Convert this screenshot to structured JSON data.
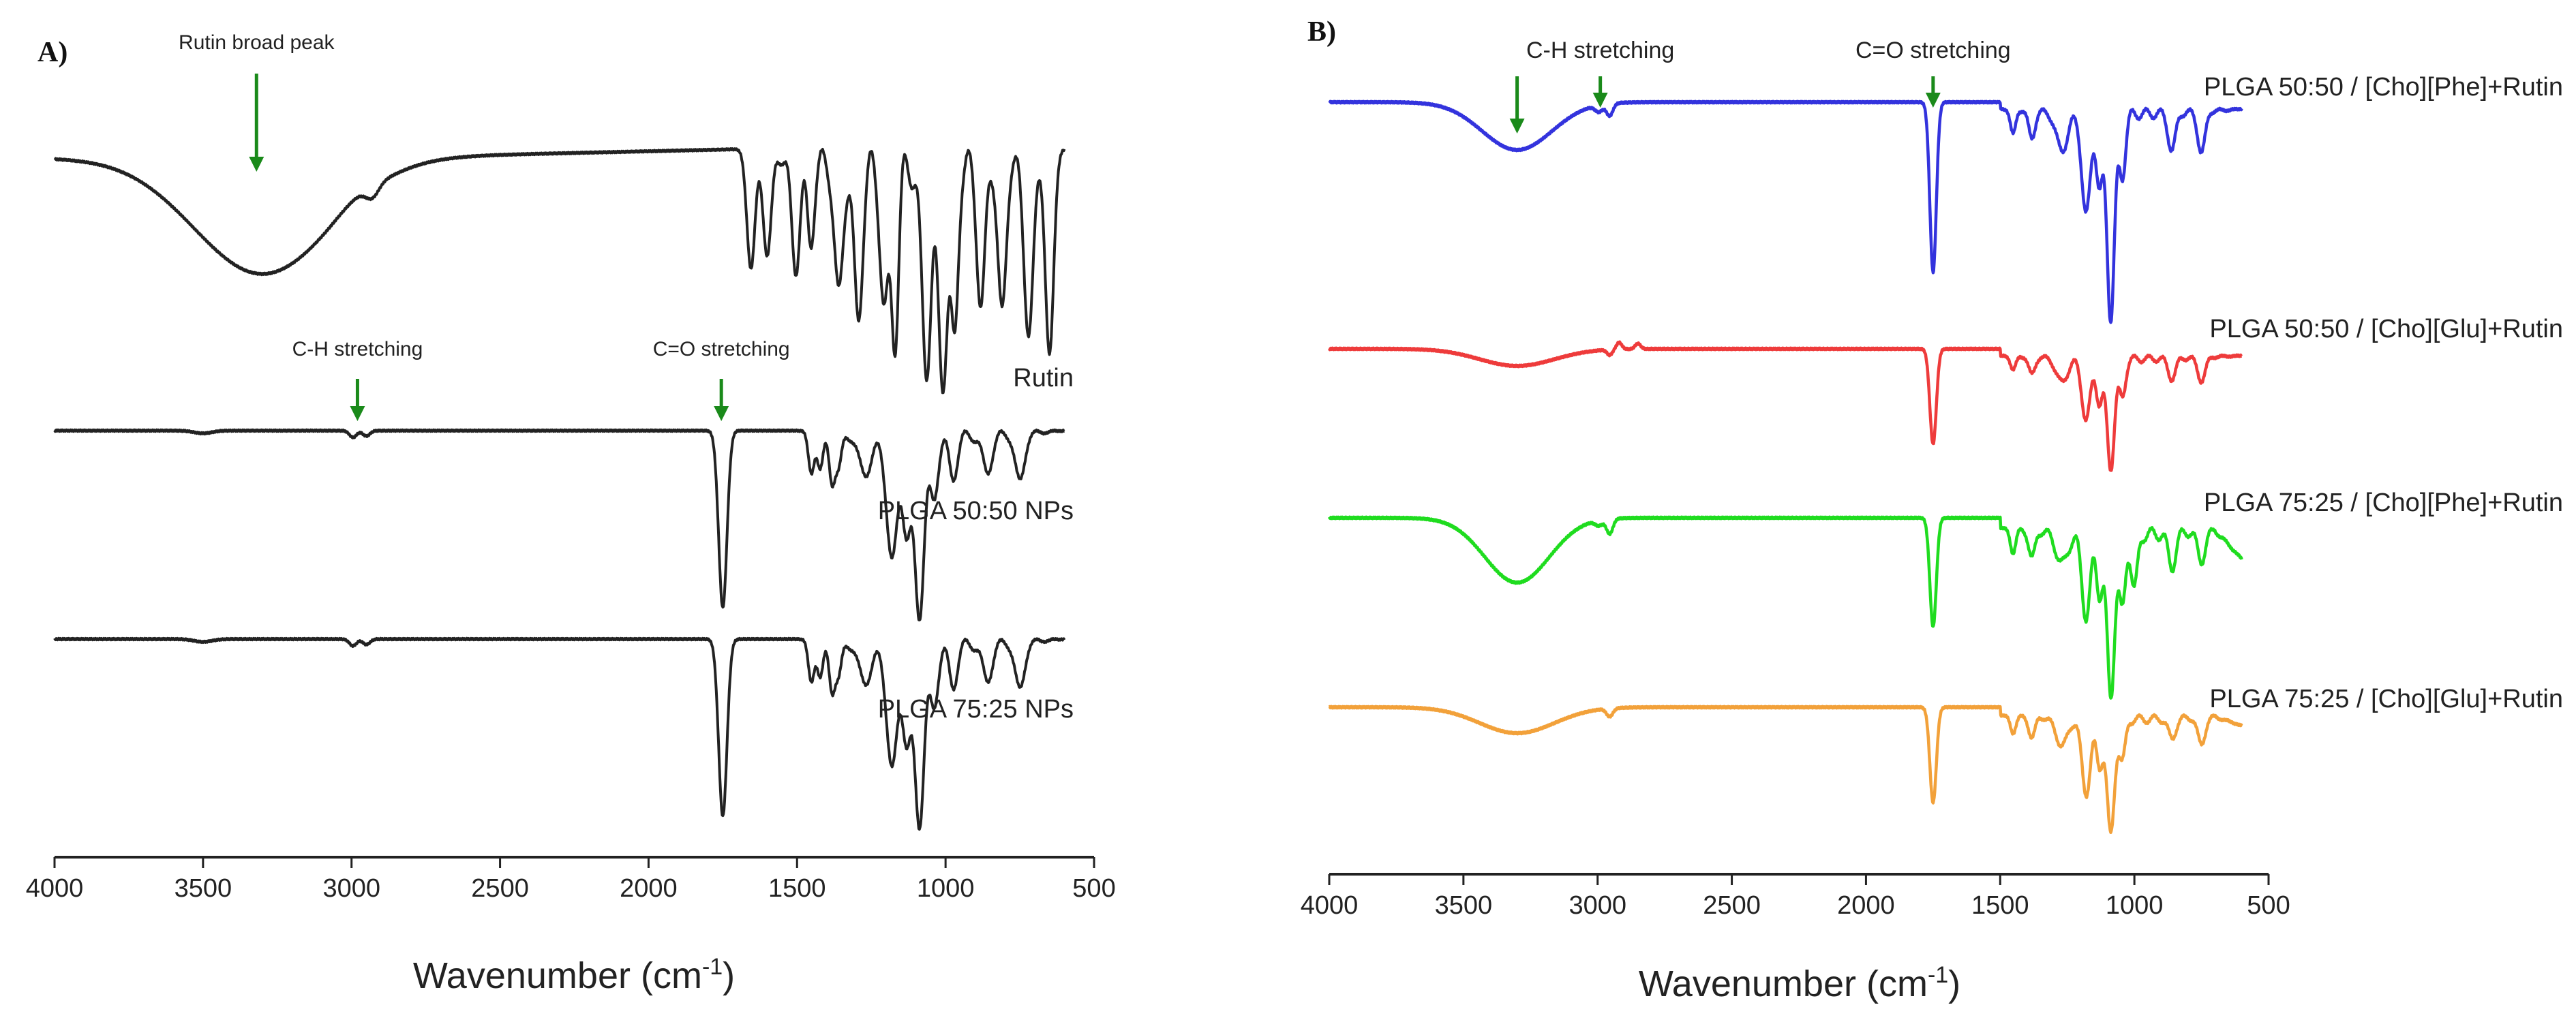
{
  "chart_data": [
    {
      "panel": "A)",
      "type": "line",
      "title": "",
      "xlabel": "Wavenumber (cm",
      "xlabel_sup": "-1",
      "xlabel_end": ")",
      "ylabel": "",
      "xlim": [
        4000,
        500
      ],
      "xticks": [
        4000,
        3500,
        3000,
        2500,
        2000,
        1500,
        1000,
        500
      ],
      "xtick_labels": [
        "4000",
        "3500",
        "3000",
        "2500",
        "2000",
        "1500",
        "1000",
        "500"
      ],
      "series": [
        {
          "name": "Rutin",
          "color": "#222222",
          "offset": 0,
          "profile": "rutin"
        },
        {
          "name": "PLGA 50:50 NPs",
          "color": "#222222",
          "offset": 1,
          "profile": "plga"
        },
        {
          "name": "PLGA 75:25 NPs",
          "color": "#222222",
          "offset": 2,
          "profile": "plga"
        }
      ],
      "annotations": [
        {
          "text": "Rutin broad peak",
          "x": 3320,
          "series": 0
        },
        {
          "text": "C-H stretching",
          "x": 2980,
          "series": 1
        },
        {
          "text": "C=O stretching",
          "x": 1755,
          "series": 1
        }
      ]
    },
    {
      "panel": "B)",
      "type": "line",
      "title": "",
      "xlabel": "Wavenumber (cm",
      "xlabel_sup": "-1",
      "xlabel_end": ")",
      "ylabel": "",
      "xlim": [
        4000,
        500
      ],
      "xticks": [
        4000,
        3500,
        3000,
        2500,
        2000,
        1500,
        1000,
        500
      ],
      "xtick_labels": [
        "4000",
        "3500",
        "3000",
        "2500",
        "2000",
        "1500",
        "1000",
        "500"
      ],
      "series": [
        {
          "name": "PLGA 50:50 / [Cho][Phe]+Rutin",
          "color": "#3333dd",
          "offset": 0,
          "profile": "blue"
        },
        {
          "name": "PLGA 50:50 / [Cho][Glu]+Rutin",
          "color": "#ee3b3b",
          "offset": 1,
          "profile": "red"
        },
        {
          "name": "PLGA 75:25 / [Cho][Phe]+Rutin",
          "color": "#1fdc1f",
          "offset": 2,
          "profile": "green"
        },
        {
          "name": "PLGA 75:25 / [Cho][Glu]+Rutin",
          "color": "#f2a13a",
          "offset": 3,
          "profile": "orange"
        }
      ],
      "annotations": [
        {
          "text": "",
          "x": 3300,
          "series": 0
        },
        {
          "text": "C-H stretching",
          "x": 2990,
          "series": 0
        },
        {
          "text": "C=O stretching",
          "x": 1750,
          "series": 0
        }
      ]
    }
  ],
  "arrow_color": "#1a8a1a"
}
